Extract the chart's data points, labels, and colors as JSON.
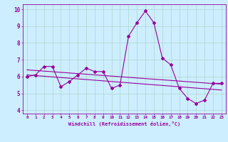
{
  "xlabel": "Windchill (Refroidissement éolien,°C)",
  "hours": [
    0,
    1,
    2,
    3,
    4,
    5,
    6,
    7,
    8,
    9,
    10,
    11,
    12,
    13,
    14,
    15,
    16,
    17,
    18,
    19,
    20,
    21,
    22,
    23
  ],
  "windchill": [
    6.0,
    6.1,
    6.6,
    6.6,
    5.4,
    5.7,
    6.1,
    6.5,
    6.3,
    6.3,
    5.3,
    5.5,
    8.4,
    9.2,
    9.9,
    9.2,
    7.1,
    6.7,
    5.3,
    4.7,
    4.4,
    4.6,
    5.6,
    5.6
  ],
  "trend1_x": [
    0,
    23
  ],
  "trend1_y": [
    6.4,
    5.55
  ],
  "trend2_x": [
    0,
    23
  ],
  "trend2_y": [
    6.1,
    5.2
  ],
  "line_color": "#990099",
  "bg_color": "#cceeff",
  "grid_color": "#aaddcc",
  "ylim": [
    3.8,
    10.3
  ],
  "xlim": [
    -0.5,
    23.5
  ],
  "yticks": [
    4,
    5,
    6,
    7,
    8,
    9,
    10
  ],
  "xticks": [
    0,
    1,
    2,
    3,
    4,
    5,
    6,
    7,
    8,
    9,
    10,
    11,
    12,
    13,
    14,
    15,
    16,
    17,
    18,
    19,
    20,
    21,
    22,
    23
  ]
}
